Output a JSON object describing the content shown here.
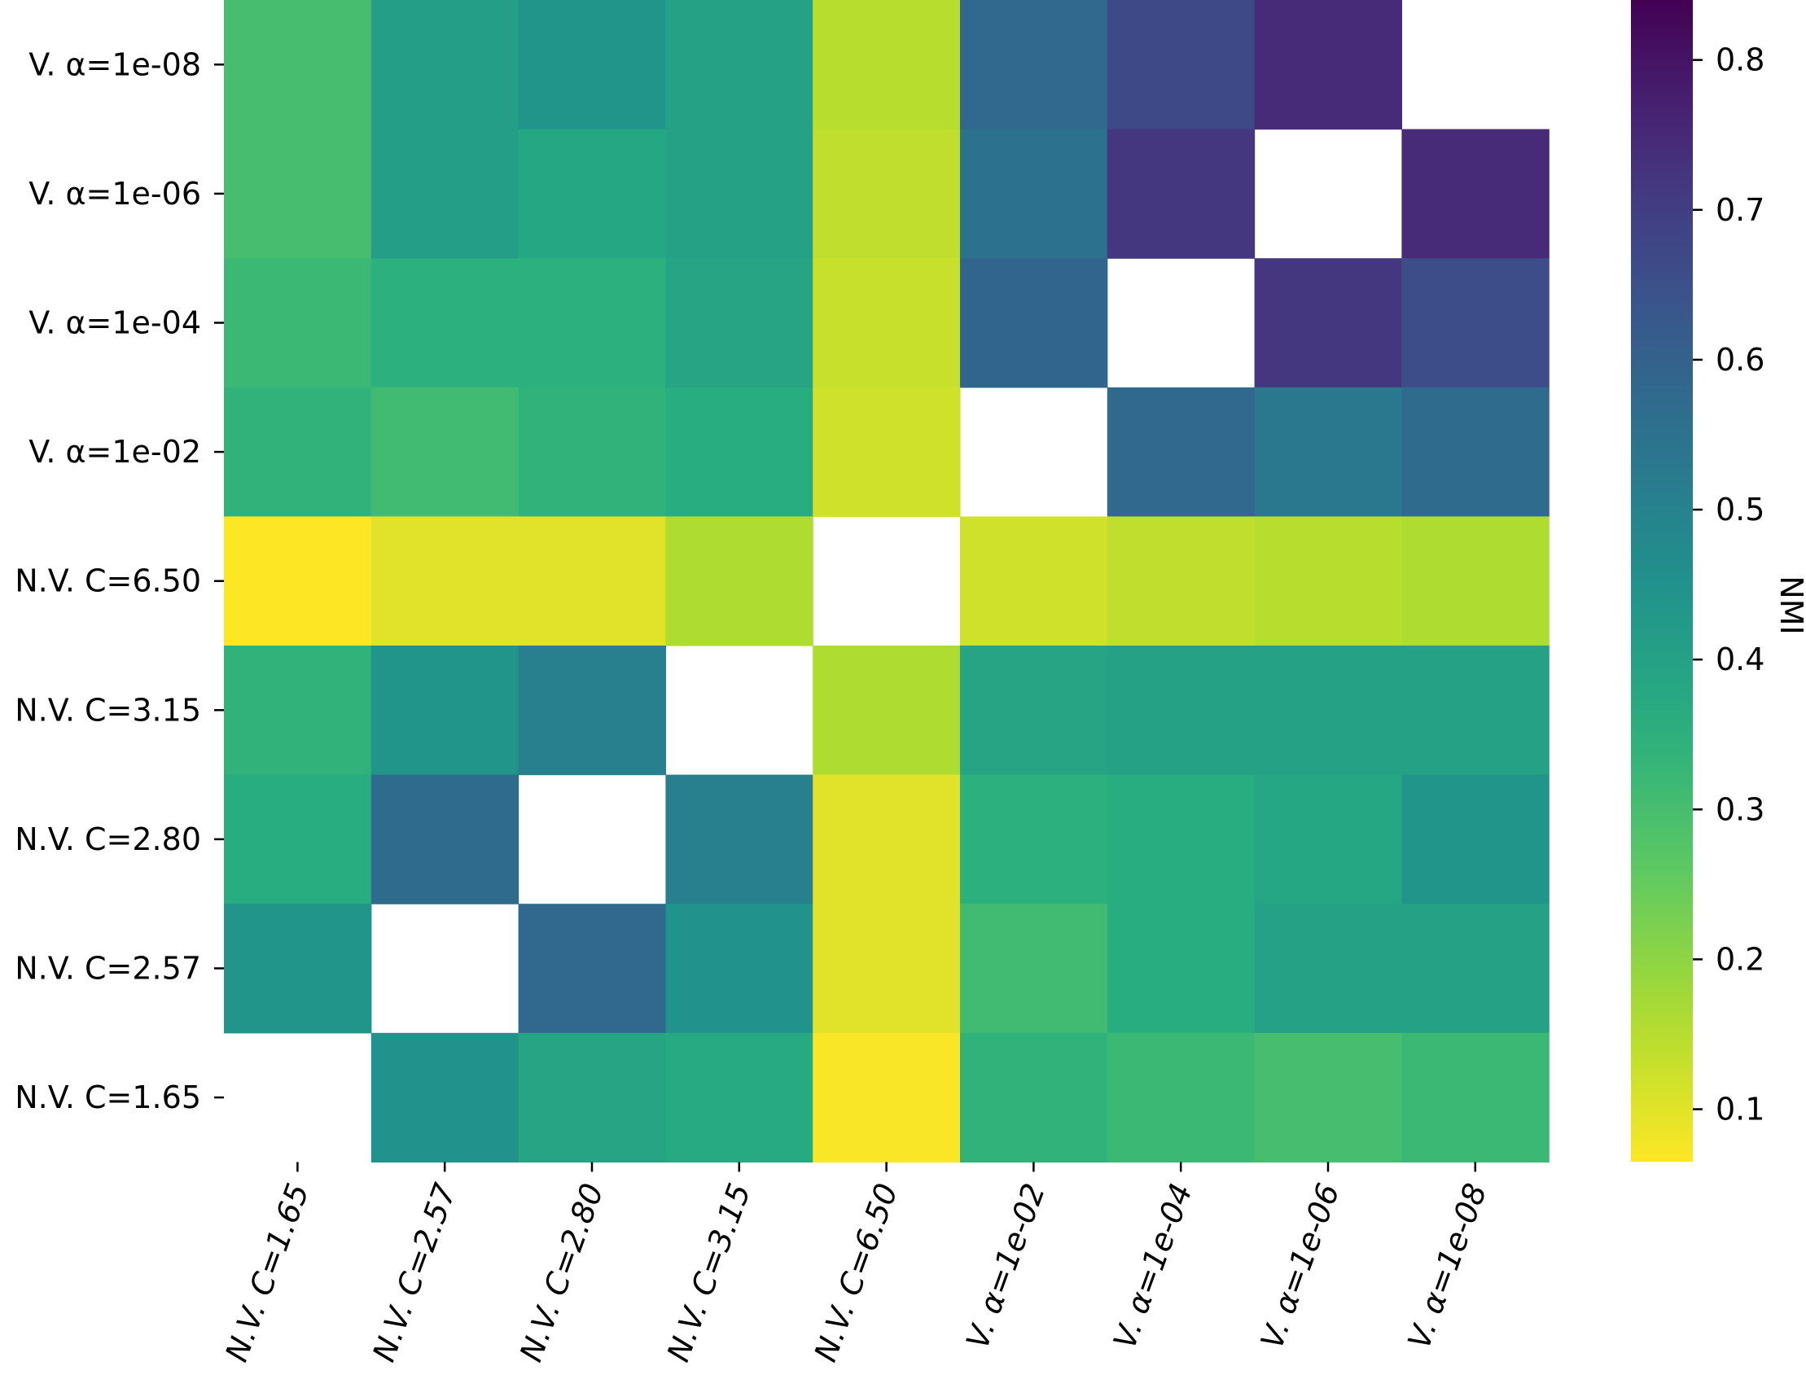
{
  "chart_data": {
    "type": "heatmap",
    "x_labels": [
      "N.V. C=1.65",
      "N.V. C=2.57",
      "N.V. C=2.80",
      "N.V. C=3.15",
      "N.V. C=6.50",
      "V. α=1e-02",
      "V. α=1e-04",
      "V. α=1e-06",
      "V. α=1e-08"
    ],
    "y_labels": [
      "V. α=1e-08",
      "V. α=1e-06",
      "V. α=1e-04",
      "V. α=1e-02",
      "N.V. C=6.50",
      "N.V. C=3.15",
      "N.V. C=2.80",
      "N.V. C=2.57",
      "N.V. C=1.65"
    ],
    "matrix": [
      [
        0.3,
        0.41,
        0.44,
        0.4,
        0.15,
        0.58,
        0.67,
        0.75,
        null
      ],
      [
        0.3,
        0.41,
        0.38,
        0.4,
        0.14,
        0.55,
        0.72,
        null,
        0.75
      ],
      [
        0.32,
        0.35,
        0.35,
        0.39,
        0.13,
        0.59,
        null,
        0.72,
        0.66
      ],
      [
        0.34,
        0.31,
        0.34,
        0.36,
        0.12,
        null,
        0.58,
        0.53,
        0.57
      ],
      [
        0.06,
        0.1,
        0.1,
        0.16,
        null,
        0.12,
        0.14,
        0.15,
        0.16
      ],
      [
        0.34,
        0.44,
        0.51,
        null,
        0.16,
        0.39,
        0.4,
        0.4,
        0.4
      ],
      [
        0.36,
        0.57,
        null,
        0.51,
        0.1,
        0.35,
        0.36,
        0.38,
        0.44
      ],
      [
        0.44,
        null,
        0.58,
        0.45,
        0.1,
        0.31,
        0.36,
        0.4,
        0.4
      ],
      [
        null,
        0.45,
        0.39,
        0.37,
        0.07,
        0.34,
        0.32,
        0.3,
        0.32
      ]
    ],
    "colorbar": {
      "label": "NMI",
      "range": [
        0.065,
        0.84
      ],
      "ticks": [
        "0.1",
        "0.2",
        "0.3",
        "0.4",
        "0.5",
        "0.6",
        "0.7",
        "0.8"
      ],
      "colormap": "viridis_r"
    }
  }
}
